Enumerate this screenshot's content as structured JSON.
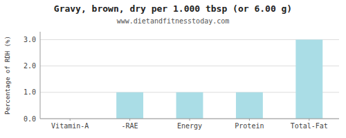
{
  "chart_data": {
    "type": "bar",
    "title": "Gravy, brown, dry per 1.000 tbsp (or 6.00 g)",
    "subtitle": "www.dietandfitnesstoday.com",
    "ylabel": "Percentage of RDH (%)",
    "categories": [
      "Vitamin-A",
      "-RAE",
      "Energy",
      "Protein",
      "Total-Fat"
    ],
    "values": [
      0.0,
      1.0,
      1.0,
      1.0,
      3.0
    ],
    "color": "#aadde6",
    "ylim": [
      0,
      3.3
    ],
    "yticks": [
      {
        "value": 0.0,
        "label": "0.0"
      },
      {
        "value": 1.0,
        "label": "1.0"
      },
      {
        "value": 2.0,
        "label": "2.0"
      },
      {
        "value": 3.0,
        "label": "3.0"
      }
    ],
    "grid": true
  }
}
